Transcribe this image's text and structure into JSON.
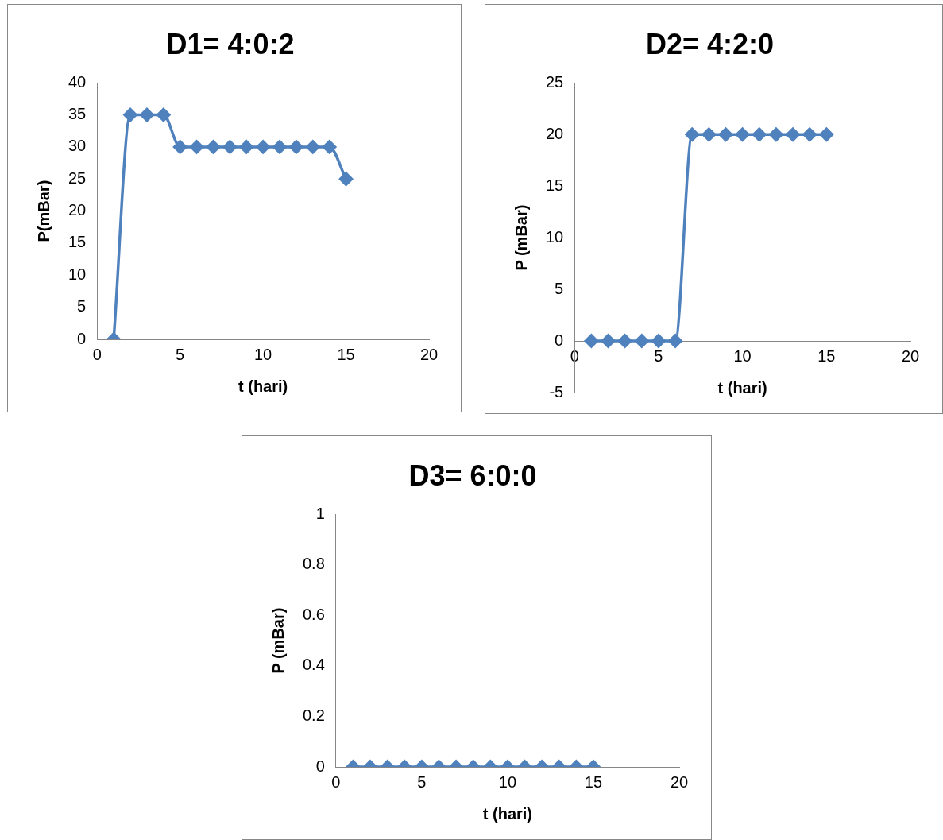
{
  "chart_data": [
    {
      "type": "line",
      "title": "D1= 4:0:2",
      "xlabel": "t (hari)",
      "ylabel": "P(mBar)",
      "x": [
        1,
        2,
        3,
        4,
        5,
        6,
        7,
        8,
        9,
        10,
        11,
        12,
        13,
        14,
        15
      ],
      "series": [
        {
          "color": "#4f81bd",
          "values": [
            0,
            35,
            35,
            35,
            30,
            30,
            30,
            30,
            30,
            30,
            30,
            30,
            30,
            30,
            25
          ]
        }
      ],
      "xlim": [
        0,
        20
      ],
      "xticks": [
        0,
        5,
        10,
        15,
        20
      ],
      "ylim": [
        0,
        40
      ],
      "yticks": [
        0,
        5,
        10,
        15,
        20,
        25,
        30,
        35,
        40
      ],
      "marker": "diamond",
      "grid": false,
      "legend": false
    },
    {
      "type": "line",
      "title": "D2= 4:2:0",
      "xlabel": "t (hari)",
      "ylabel": "P (mBar)",
      "x": [
        1,
        2,
        3,
        4,
        5,
        6,
        7,
        8,
        9,
        10,
        11,
        12,
        13,
        14,
        15
      ],
      "series": [
        {
          "color": "#4f81bd",
          "values": [
            0,
            0,
            0,
            0,
            0,
            0,
            20,
            20,
            20,
            20,
            20,
            20,
            20,
            20,
            20
          ]
        }
      ],
      "xlim": [
        0,
        20
      ],
      "xticks": [
        0,
        5,
        10,
        15,
        20
      ],
      "ylim": [
        -5,
        25
      ],
      "yticks": [
        -5,
        0,
        5,
        10,
        15,
        20,
        25
      ],
      "marker": "diamond",
      "grid": false,
      "legend": false
    },
    {
      "type": "line",
      "title": "D3= 6:0:0",
      "xlabel": "t (hari)",
      "ylabel": "P (mBar)",
      "x": [
        1,
        2,
        3,
        4,
        5,
        6,
        7,
        8,
        9,
        10,
        11,
        12,
        13,
        14,
        15
      ],
      "series": [
        {
          "color": "#4f81bd",
          "values": [
            0,
            0,
            0,
            0,
            0,
            0,
            0,
            0,
            0,
            0,
            0,
            0,
            0,
            0,
            0
          ]
        }
      ],
      "xlim": [
        0,
        20
      ],
      "xticks": [
        0,
        5,
        10,
        15,
        20
      ],
      "ylim": [
        0,
        1
      ],
      "yticks": [
        0,
        0.2,
        0.4,
        0.6,
        0.8,
        1
      ],
      "marker": "diamond",
      "grid": false,
      "legend": false
    }
  ]
}
